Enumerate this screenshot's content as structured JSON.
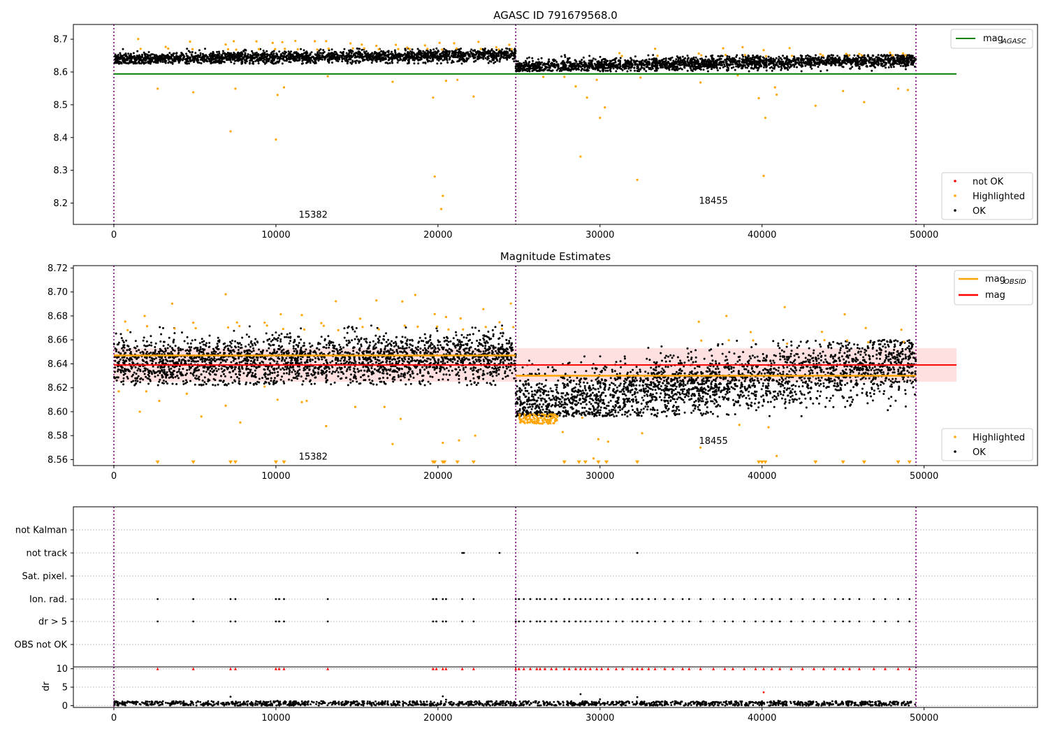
{
  "chart_data": [
    {
      "type": "scatter",
      "title": "AGASC ID 791679568.0",
      "xlim": [
        -2500,
        57000
      ],
      "ylim": [
        8.135,
        8.745
      ],
      "xticks": [
        0,
        10000,
        20000,
        30000,
        40000,
        50000
      ],
      "yticks": [
        8.2,
        8.3,
        8.4,
        8.5,
        8.6,
        8.7
      ],
      "ytick_labels": [
        "8.2",
        "8.3",
        "8.4",
        "8.5",
        "8.6",
        "8.7"
      ],
      "legend_upper": {
        "entries": [
          {
            "label_main": "mag",
            "label_sub": "AGASC",
            "color": "#008000",
            "kind": "line"
          }
        ],
        "position": "upper right"
      },
      "legend_lower": {
        "entries": [
          {
            "label": "not OK",
            "color": "#ff0000",
            "kind": "dot"
          },
          {
            "label": "Highlighted",
            "color": "#ffa500",
            "kind": "dot"
          },
          {
            "label": "OK",
            "color": "#000000",
            "kind": "dot"
          }
        ],
        "position": "lower right"
      },
      "hlines": [
        {
          "y": 8.594,
          "x0": 0,
          "x1": 52000,
          "color": "#008000",
          "name": "mag_AGASC"
        }
      ],
      "vlines": [
        0,
        24800,
        49500
      ],
      "obsids": [
        {
          "label": "15382",
          "x": 12300,
          "y": 8.155
        },
        {
          "label": "18455",
          "x": 37000,
          "y": 8.198
        }
      ],
      "ok_bands": [
        {
          "x0": 0,
          "x1": 24800,
          "y_lo": 8.625,
          "y_hi": 8.672,
          "y_center_start": 8.639,
          "y_center_end": 8.652
        },
        {
          "x0": 24800,
          "x1": 49500,
          "y_lo": 8.602,
          "y_hi": 8.652,
          "y_center_start": 8.616,
          "y_center_end": 8.637
        }
      ],
      "highlighted_points": [
        [
          2700,
          8.549
        ],
        [
          4900,
          8.538
        ],
        [
          7200,
          8.419
        ],
        [
          7500,
          8.549
        ],
        [
          10000,
          8.394
        ],
        [
          10100,
          8.53
        ],
        [
          10500,
          8.553
        ],
        [
          13200,
          8.587
        ],
        [
          17200,
          8.57
        ],
        [
          19700,
          8.522
        ],
        [
          19800,
          8.281
        ],
        [
          20200,
          8.182
        ],
        [
          20300,
          8.222
        ],
        [
          20500,
          8.573
        ],
        [
          21200,
          8.576
        ],
        [
          22200,
          8.525
        ],
        [
          26500,
          8.585
        ],
        [
          27800,
          8.585
        ],
        [
          28500,
          8.556
        ],
        [
          28800,
          8.342
        ],
        [
          29200,
          8.522
        ],
        [
          29800,
          8.576
        ],
        [
          30000,
          8.46
        ],
        [
          30300,
          8.492
        ],
        [
          32300,
          8.271
        ],
        [
          32500,
          8.583
        ],
        [
          36200,
          8.568
        ],
        [
          38500,
          8.59
        ],
        [
          39800,
          8.52
        ],
        [
          40100,
          8.283
        ],
        [
          40200,
          8.46
        ],
        [
          40800,
          8.553
        ],
        [
          40900,
          8.531
        ],
        [
          43300,
          8.497
        ],
        [
          45000,
          8.542
        ],
        [
          46300,
          8.508
        ],
        [
          48400,
          8.549
        ],
        [
          49000,
          8.545
        ]
      ],
      "highlight_upper_x": [
        1500,
        3200,
        4700,
        6900,
        7400,
        8800,
        9800,
        10400,
        11200,
        12400,
        13100,
        14600,
        15300,
        16200,
        17400,
        18100,
        19200,
        20100,
        21000,
        22500,
        23600,
        24400,
        31200,
        33400,
        36100,
        37600,
        38800,
        40100,
        41700,
        43600,
        45200,
        46000,
        47900,
        48700
      ]
    },
    {
      "type": "scatter",
      "title": "Magnitude Estimates",
      "xlim": [
        -2500,
        57000
      ],
      "ylim": [
        8.555,
        8.722
      ],
      "xticks": [
        0,
        10000,
        20000,
        30000,
        40000,
        50000
      ],
      "yticks": [
        8.56,
        8.58,
        8.6,
        8.62,
        8.64,
        8.66,
        8.68,
        8.7,
        8.72
      ],
      "ytick_labels": [
        "8.56",
        "8.58",
        "8.60",
        "8.62",
        "8.64",
        "8.66",
        "8.68",
        "8.70",
        "8.72"
      ],
      "legend_upper": {
        "entries": [
          {
            "label_main": "mag",
            "label_sub": "OBSID",
            "color": "#ffa500",
            "kind": "line"
          },
          {
            "label_main": "mag",
            "label_sub": "",
            "color": "#ff0000",
            "kind": "line"
          }
        ],
        "position": "upper right"
      },
      "legend_lower": {
        "entries": [
          {
            "label": "Highlighted",
            "color": "#ffa500",
            "kind": "dot"
          },
          {
            "label": "OK",
            "color": "#000000",
            "kind": "dot"
          }
        ],
        "position": "lower right"
      },
      "mag": 8.639,
      "mag_band": [
        8.625,
        8.653
      ],
      "mag_x_range": [
        0,
        52000
      ],
      "obsid_mags": [
        {
          "x0": 0,
          "x1": 24800,
          "mag": 8.647
        },
        {
          "x0": 24800,
          "x1": 49500,
          "mag": 8.63
        }
      ],
      "vlines": [
        0,
        24800,
        49500
      ],
      "obsids": [
        {
          "label": "15382",
          "x": 12300,
          "y": 8.56
        },
        {
          "label": "18455",
          "x": 37000,
          "y": 8.573
        }
      ],
      "ok_bands": [
        {
          "x0": 0,
          "x1": 24800,
          "y_lo": 8.622,
          "y_hi": 8.672,
          "y_center_start": 8.641,
          "y_center_end": 8.646
        },
        {
          "x0": 24800,
          "x1": 49500,
          "y_lo": 8.596,
          "y_hi": 8.66,
          "y_center_start": 8.606,
          "y_center_end": 8.641
        }
      ],
      "highlighted_points": [
        [
          300,
          8.617
        ],
        [
          1600,
          8.6
        ],
        [
          2000,
          8.617
        ],
        [
          2800,
          8.609
        ],
        [
          4500,
          8.615
        ],
        [
          5400,
          8.596
        ],
        [
          6900,
          8.605
        ],
        [
          7800,
          8.591
        ],
        [
          9300,
          8.621
        ],
        [
          10100,
          8.61
        ],
        [
          11600,
          8.608
        ],
        [
          11900,
          8.609
        ],
        [
          13100,
          8.588
        ],
        [
          14900,
          8.604
        ],
        [
          16700,
          8.604
        ],
        [
          17200,
          8.573
        ],
        [
          17700,
          8.594
        ],
        [
          20300,
          8.574
        ],
        [
          21300,
          8.576
        ],
        [
          22300,
          8.58
        ],
        [
          25400,
          8.595
        ],
        [
          26800,
          8.59
        ],
        [
          27700,
          8.583
        ],
        [
          28900,
          8.595
        ],
        [
          29600,
          8.561
        ],
        [
          29900,
          8.577
        ],
        [
          30500,
          8.575
        ],
        [
          32600,
          8.582
        ],
        [
          36200,
          8.57
        ],
        [
          38600,
          8.589
        ],
        [
          40400,
          8.587
        ],
        [
          40900,
          8.563
        ]
      ],
      "highlight_upper_x": [
        700,
        1900,
        3600,
        4900,
        6900,
        7600,
        9300,
        10300,
        11600,
        12800,
        13700,
        15200,
        16200,
        17800,
        18600,
        19800,
        20500,
        21400,
        22800,
        23800,
        24500,
        36100,
        37800,
        39300,
        41400,
        43700,
        45100,
        46400,
        48600
      ],
      "lower_markers_x": [
        2700,
        4900,
        7200,
        7500,
        10000,
        10500,
        19700,
        19800,
        20300,
        20400,
        21200,
        22200,
        27800,
        28700,
        29100,
        29900,
        30400,
        32300,
        39800,
        40000,
        40200,
        43300,
        45000,
        46300,
        48400,
        49100
      ]
    },
    {
      "type": "scatter",
      "title": "",
      "xlim": [
        -2500,
        57000
      ],
      "categories": [
        "not Kalman",
        "not track",
        "Sat. pixel.",
        "Ion. rad.",
        "dr > 5",
        "OBS not OK"
      ],
      "vlines": [
        0,
        24800,
        49500
      ],
      "flag_points": {
        "not track": [
          21500,
          21600,
          23800,
          32300
        ],
        "Ion. rad.": [
          2700,
          4900,
          7200,
          7500,
          10000,
          10200,
          10500,
          13200,
          19700,
          19900,
          20300,
          20500,
          21500,
          22200,
          24800,
          25000,
          25300,
          25700,
          26100,
          26300,
          26600,
          27000,
          27300,
          27800,
          28100,
          28500,
          28800,
          29100,
          29400,
          29800,
          30100,
          30500,
          31000,
          31400,
          32000,
          32300,
          32600,
          33000,
          33400,
          34000,
          34500,
          35100,
          35500,
          36200,
          37000,
          37700,
          38200,
          38900,
          39600,
          40100,
          40600,
          41100,
          41800,
          42500,
          43200,
          43800,
          44500,
          45000,
          45400,
          46000,
          46900,
          47600,
          48400,
          49100
        ],
        "dr > 5": [
          2700,
          4900,
          7200,
          7500,
          10000,
          10200,
          10500,
          13200,
          19700,
          19900,
          20300,
          20500,
          21500,
          22200,
          24800,
          25000,
          25300,
          25700,
          26100,
          26300,
          26600,
          27000,
          27300,
          27800,
          28100,
          28500,
          28800,
          29100,
          29400,
          29800,
          30100,
          30500,
          31000,
          31400,
          32000,
          32300,
          32600,
          33000,
          33400,
          34000,
          34500,
          35100,
          35500,
          36200,
          37000,
          37700,
          38200,
          38900,
          39600,
          40100,
          40600,
          41100,
          41800,
          42500,
          43200,
          43800,
          44500,
          45000,
          45400,
          46000,
          46900,
          47600,
          48400,
          49100
        ]
      }
    },
    {
      "type": "scatter",
      "title": "",
      "xlim": [
        -2500,
        57000
      ],
      "xticks": [
        0,
        10000,
        20000,
        30000,
        40000,
        50000
      ],
      "ylabel": "dr",
      "ylim": [
        -0.5,
        10.5
      ],
      "yticks": [
        0,
        5,
        10
      ],
      "ytick_labels": [
        "0",
        "5",
        "10"
      ],
      "vlines": [
        0,
        24800,
        49500
      ],
      "dr_band": [
        0,
        1.2
      ],
      "dr_outliers": [
        [
          7200,
          2.4
        ],
        [
          10100,
          1.3
        ],
        [
          20300,
          2.5
        ],
        [
          20500,
          1.6
        ],
        [
          28800,
          3.1
        ],
        [
          30000,
          1.7
        ],
        [
          32300,
          2.3
        ],
        [
          40100,
          3.6
        ],
        [
          41000,
          1.3
        ]
      ],
      "clipped_at_10_x": [
        2700,
        4900,
        7200,
        7500,
        10000,
        10200,
        10500,
        13200,
        19700,
        19900,
        20300,
        20500,
        21500,
        22200,
        24800,
        25000,
        25300,
        25700,
        26100,
        26300,
        26600,
        27000,
        27300,
        27800,
        28100,
        28500,
        28800,
        29100,
        29400,
        29800,
        30100,
        30500,
        31000,
        31400,
        32000,
        32300,
        32600,
        33000,
        33400,
        34000,
        34500,
        35100,
        35500,
        36200,
        37000,
        37700,
        38200,
        38900,
        39600,
        40100,
        40600,
        41100,
        41800,
        42500,
        43200,
        43800,
        44500,
        45000,
        45400,
        46000,
        46900,
        47600,
        48400,
        49100
      ]
    }
  ]
}
